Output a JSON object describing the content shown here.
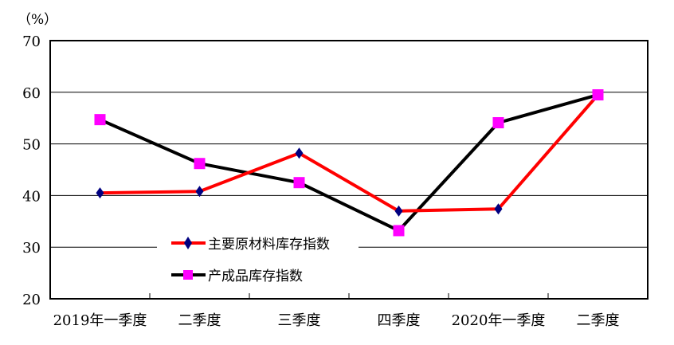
{
  "chart_data": {
    "type": "line",
    "unit_label": "（%）",
    "title": "",
    "xlabel": "",
    "ylabel": "（%）",
    "ylim": [
      20,
      70
    ],
    "yticks": [
      20,
      30,
      40,
      50,
      60,
      70
    ],
    "grid": true,
    "categories": [
      "2019年一季度",
      "二季度",
      "三季度",
      "四季度",
      "2020年一季度",
      "二季度"
    ],
    "legend_position": "lower-left",
    "series": [
      {
        "name": "主要原材料库存指数",
        "line_color": "#ff0000",
        "marker": "diamond",
        "marker_color": "#000080",
        "values": [
          40.5,
          40.8,
          48.2,
          37.0,
          37.4,
          59.5
        ]
      },
      {
        "name": "产成品库存指数",
        "line_color": "#000000",
        "marker": "square",
        "marker_color": "#ff00ff",
        "values": [
          54.7,
          46.2,
          42.5,
          33.2,
          54.1,
          59.5
        ]
      }
    ]
  }
}
